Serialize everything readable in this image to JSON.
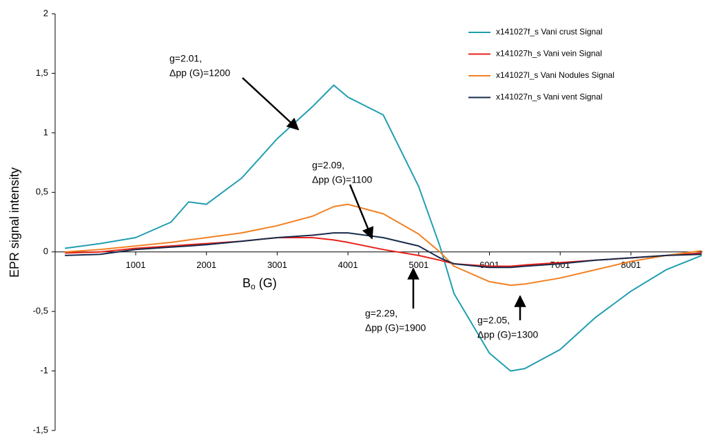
{
  "chart_data": {
    "type": "line",
    "xlabel": [
      "B",
      "o",
      "(G)"
    ],
    "ylabel": "EPR signal intensity",
    "x": [
      0,
      500,
      1000,
      1500,
      1750,
      2000,
      2500,
      3000,
      3500,
      3800,
      4000,
      4500,
      5000,
      5300,
      5500,
      6000,
      6300,
      6500,
      7000,
      7500,
      8000,
      8500,
      9000
    ],
    "series": [
      {
        "name": "x141027f_s Vani crust Signal",
        "color": "#1f9db0",
        "values": [
          0.03,
          0.07,
          0.12,
          0.25,
          0.42,
          0.4,
          0.62,
          0.95,
          1.22,
          1.4,
          1.3,
          1.15,
          0.55,
          0.05,
          -0.35,
          -0.85,
          -1.0,
          -0.98,
          -0.82,
          -0.55,
          -0.33,
          -0.15,
          -0.03
        ]
      },
      {
        "name": "x141027h_s Vani vein Signal",
        "color": "#e8201a",
        "values": [
          -0.01,
          0.0,
          0.03,
          0.05,
          0.06,
          0.07,
          0.09,
          0.12,
          0.12,
          0.1,
          0.08,
          0.02,
          -0.03,
          -0.07,
          -0.1,
          -0.12,
          -0.12,
          -0.11,
          -0.09,
          -0.07,
          -0.05,
          -0.03,
          -0.01
        ]
      },
      {
        "name": "x141027l_s Vani Nodules Signal",
        "color": "#f28022",
        "values": [
          0.0,
          0.02,
          0.05,
          0.08,
          0.1,
          0.12,
          0.16,
          0.22,
          0.3,
          0.38,
          0.4,
          0.32,
          0.15,
          0.0,
          -0.12,
          -0.25,
          -0.28,
          -0.27,
          -0.22,
          -0.15,
          -0.08,
          -0.03,
          0.01
        ]
      },
      {
        "name": "x141027n_s Vani vent Signal",
        "color": "#172a4a",
        "values": [
          -0.03,
          -0.02,
          0.02,
          0.04,
          0.05,
          0.06,
          0.09,
          0.12,
          0.14,
          0.16,
          0.16,
          0.12,
          0.05,
          -0.05,
          -0.1,
          -0.13,
          -0.13,
          -0.12,
          -0.1,
          -0.07,
          -0.05,
          -0.03,
          -0.02
        ]
      }
    ],
    "xlim": [
      -138,
      9014
    ],
    "xticks": [
      1001,
      2001,
      3001,
      4001,
      5001,
      6001,
      7001,
      8001
    ],
    "ylim": [
      -1.5,
      2
    ],
    "yticks": [
      {
        "value": -1.5,
        "label": "-1,5"
      },
      -1,
      {
        "value": -0.5,
        "label": "-0,5"
      },
      0,
      {
        "value": 0.5,
        "label": "0,5"
      },
      1,
      {
        "value": 1.5,
        "label": "1,5"
      },
      2
    ],
    "legend": "top-right",
    "annotations": [
      {
        "lines": [
          "g=2.01,",
          "Δpp (G)=1200"
        ]
      },
      {
        "lines": [
          "g=2.09,",
          "Δpp (G)=1100"
        ]
      },
      {
        "lines": [
          "g=2.29,",
          "Δpp (G)=1900"
        ]
      },
      {
        "lines": [
          "g=2.05,",
          "Δpp (G)=1300"
        ]
      }
    ]
  }
}
